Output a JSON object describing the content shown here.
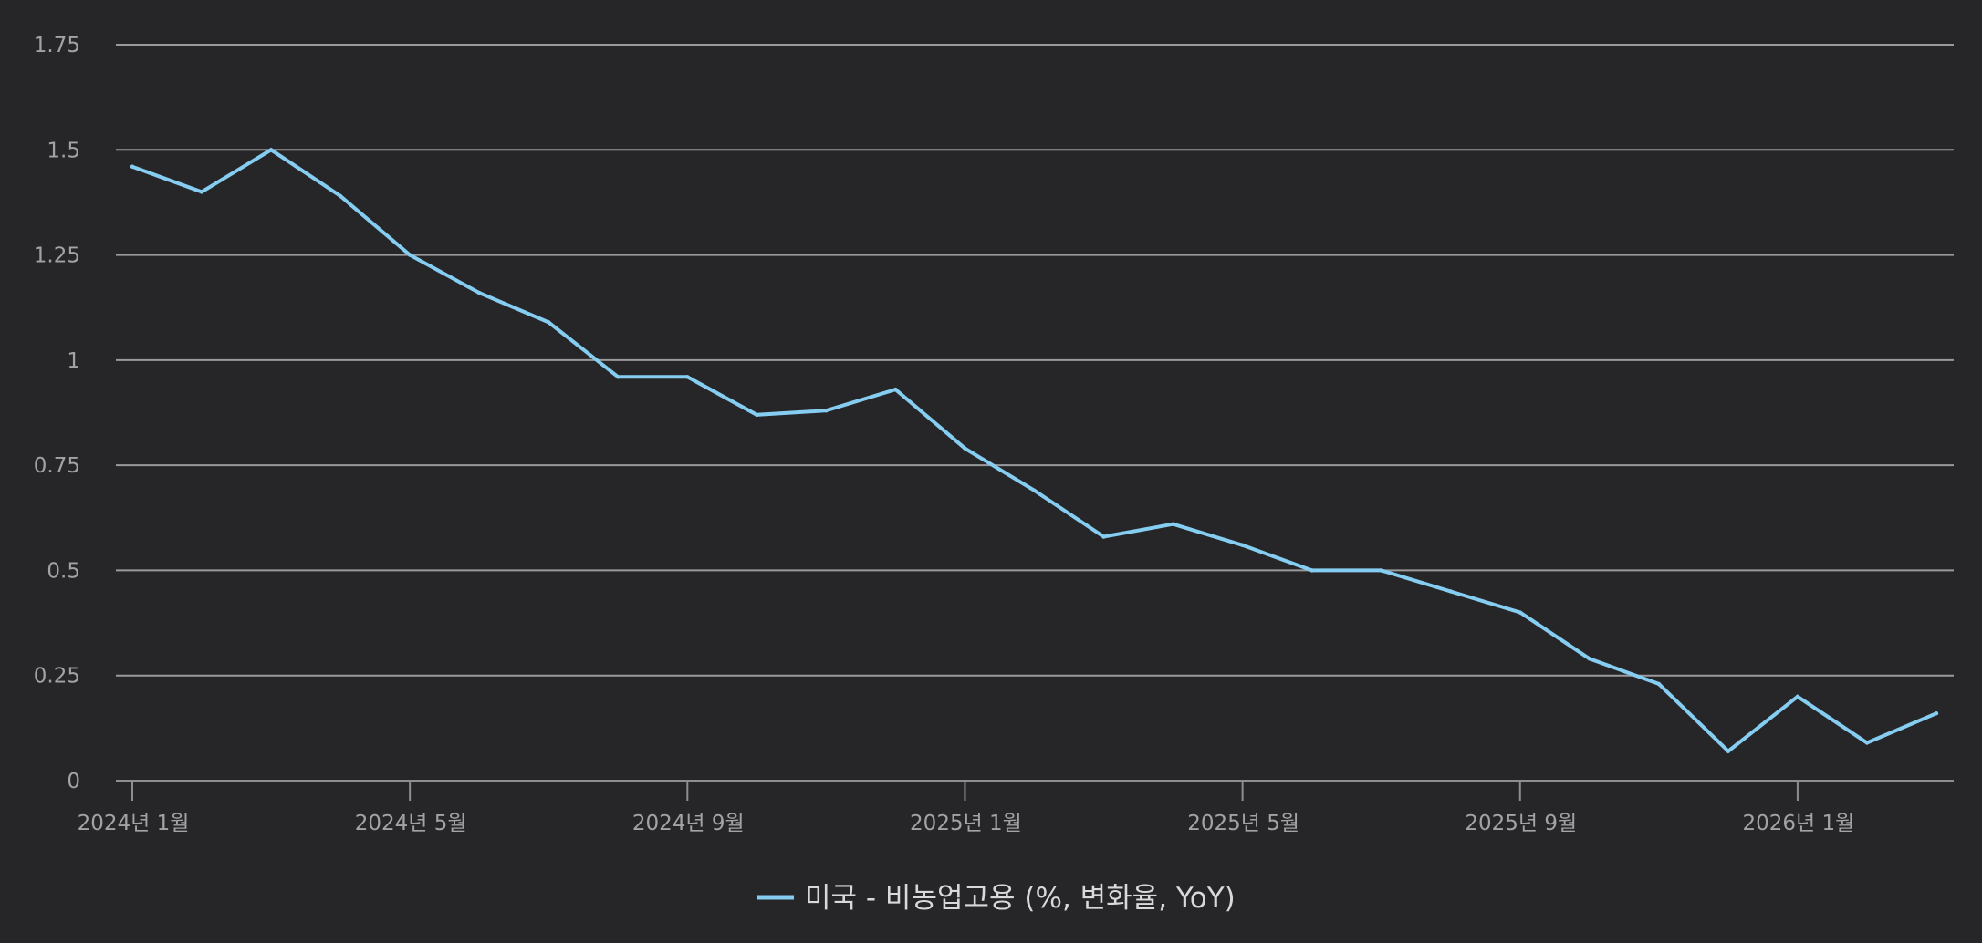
{
  "chart_data": {
    "type": "line",
    "title": "",
    "xlabel": "",
    "ylabel": "",
    "ylim": [
      0,
      1.75
    ],
    "y_ticks": [
      0,
      0.25,
      0.5,
      0.75,
      1,
      1.25,
      1.5,
      1.75
    ],
    "y_tick_labels": [
      "0",
      "0.25",
      "0.5",
      "0.75",
      "1",
      "1.25",
      "1.5",
      "1.75"
    ],
    "x": [
      "2024-01",
      "2024-02",
      "2024-03",
      "2024-04",
      "2024-05",
      "2024-06",
      "2024-07",
      "2024-08",
      "2024-09",
      "2024-10",
      "2024-11",
      "2024-12",
      "2025-01",
      "2025-02",
      "2025-03",
      "2025-04",
      "2025-05",
      "2025-06",
      "2025-07",
      "2025-08",
      "2025-09",
      "2025-10",
      "2025-11",
      "2025-12",
      "2026-01",
      "2026-02",
      "2026-03"
    ],
    "x_ticks": [
      {
        "x": "2024-01",
        "label": "2024년 1월"
      },
      {
        "x": "2024-05",
        "label": "2024년 5월"
      },
      {
        "x": "2024-09",
        "label": "2024년 9월"
      },
      {
        "x": "2025-01",
        "label": "2025년 1월"
      },
      {
        "x": "2025-05",
        "label": "2025년 5월"
      },
      {
        "x": "2025-09",
        "label": "2025년 9월"
      },
      {
        "x": "2026-01",
        "label": "2026년 1월"
      }
    ],
    "series": [
      {
        "name": "미국 - 비농업고용 (%, 변화율, YoY)",
        "color": "#86cdf2",
        "values": [
          1.46,
          1.4,
          1.5,
          1.39,
          1.25,
          1.16,
          1.09,
          0.96,
          0.96,
          0.87,
          0.88,
          0.93,
          0.79,
          0.69,
          0.58,
          0.61,
          0.56,
          0.5,
          0.5,
          0.45,
          0.4,
          0.29,
          0.23,
          0.07,
          0.2,
          0.09,
          0.16
        ]
      }
    ],
    "grid": true,
    "legend_position": "bottom-center",
    "colors": {
      "background": "#262628",
      "grid": "#9a9a9d",
      "axis": "#8e8e91",
      "tick_text": "#a3a3a6",
      "legend_text": "#d9d9dc"
    }
  }
}
